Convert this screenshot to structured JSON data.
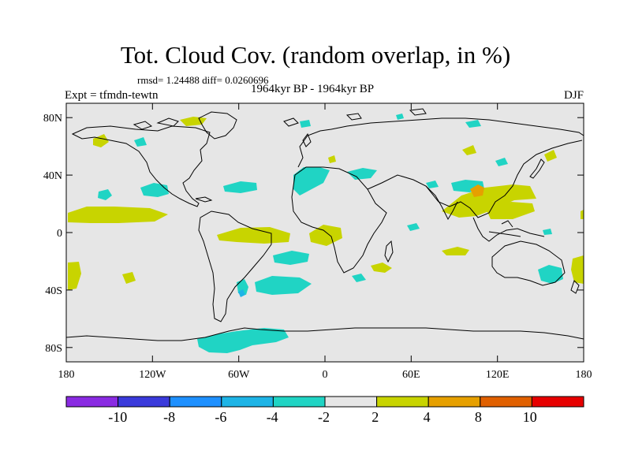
{
  "figure": {
    "title": "Tot. Cloud Cov. (random overlap, in %)",
    "stats": "rmsd= 1.24488 diff= 0.0260696",
    "experiment": "Expt = tfmdn-tewtn",
    "period": "1964kyr BP - 1964kyr BP",
    "season": "DJF"
  },
  "axes": {
    "x_ticks": [
      "180",
      "120W",
      "60W",
      "0",
      "60E",
      "120E",
      "180"
    ],
    "y_ticks": [
      "80N",
      "40N",
      "0",
      "40S",
      "80S"
    ]
  },
  "colorbar": {
    "colors": [
      "#8a2be2",
      "#3a3adb",
      "#1e90ff",
      "#1eb4e6",
      "#20d4c4",
      "#e6e6e6",
      "#c8d400",
      "#e6a000",
      "#e06000",
      "#e60000"
    ],
    "labels": [
      "-10",
      "-8",
      "-6",
      "-4",
      "-2",
      "2",
      "4",
      "8",
      "10"
    ]
  },
  "map_colors": {
    "background": "#e6e6e6",
    "negative_2_4": "#20d4c4",
    "positive_2_4": "#c8d400",
    "positive_4_8": "#e6a000",
    "negative_4_6": "#1eb4e6"
  }
}
